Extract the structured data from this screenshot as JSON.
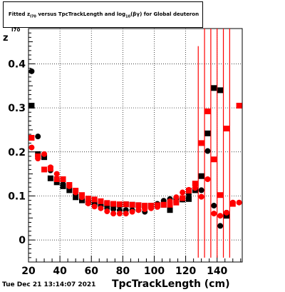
{
  "header": {
    "title_prefix": "Fitted  z",
    "title_sub1": "I70",
    "title_mid": "  versus TpcTrackLength and log",
    "title_sub2": "10",
    "title_suffix": "(βγ) for Global deuteron"
  },
  "footer": {
    "timestamp": "Tue Dec 21 13:14:07 2021"
  },
  "chart_data": {
    "type": "scatter",
    "title": "Fitted z_I70 versus TpcTrackLength and log10(βγ) for Global deuteron",
    "xlabel": "TpcTrackLength (cm)",
    "ylabel": "z",
    "ylabel_sub": "I70",
    "xlim": [
      20,
      156
    ],
    "ylim": [
      -0.05,
      0.48
    ],
    "x_ticks": [
      20,
      40,
      60,
      80,
      100,
      120,
      140
    ],
    "y_ticks": [
      0,
      0.1,
      0.2,
      0.3,
      0.4
    ],
    "x_tick_labels": [
      "20",
      "40",
      "60",
      "80",
      "100",
      "120",
      "140"
    ],
    "y_tick_labels": [
      "0",
      "0.1",
      "0.2",
      "0.3",
      "0.4"
    ],
    "grid": true,
    "legend": "none",
    "series": [
      {
        "marker": "circle",
        "color": "#000000",
        "points": [
          [
            22,
            0.383
          ],
          [
            26,
            0.235
          ],
          [
            30,
            0.192
          ],
          [
            34,
            0.158
          ],
          [
            38,
            0.137
          ],
          [
            42,
            0.127
          ],
          [
            46,
            0.115
          ],
          [
            50,
            0.103
          ],
          [
            54,
            0.093
          ],
          [
            58,
            0.086
          ],
          [
            62,
            0.082
          ],
          [
            66,
            0.077
          ],
          [
            70,
            0.072
          ],
          [
            74,
            0.07
          ],
          [
            78,
            0.068
          ],
          [
            82,
            0.068
          ],
          [
            86,
            0.068
          ],
          [
            90,
            0.068
          ],
          [
            94,
            0.064
          ],
          [
            98,
            0.076
          ],
          [
            102,
            0.082
          ],
          [
            106,
            0.089
          ],
          [
            110,
            0.093
          ],
          [
            114,
            0.094
          ],
          [
            118,
            0.092
          ],
          [
            122,
            0.103
          ],
          [
            126,
            0.116
          ],
          [
            130,
            0.113
          ],
          [
            134,
            0.202
          ],
          [
            138,
            0.078
          ],
          [
            142,
            0.032
          ],
          [
            146,
            0.062
          ]
        ]
      },
      {
        "marker": "square",
        "color": "#000000",
        "points": [
          [
            22,
            0.305
          ],
          [
            26,
            0.195
          ],
          [
            30,
            0.188
          ],
          [
            34,
            0.14
          ],
          [
            38,
            0.131
          ],
          [
            42,
            0.122
          ],
          [
            46,
            0.113
          ],
          [
            50,
            0.097
          ],
          [
            54,
            0.09
          ],
          [
            58,
            0.086
          ],
          [
            62,
            0.084
          ],
          [
            66,
            0.082
          ],
          [
            70,
            0.081
          ],
          [
            74,
            0.08
          ],
          [
            78,
            0.08
          ],
          [
            82,
            0.081
          ],
          [
            86,
            0.08
          ],
          [
            90,
            0.079
          ],
          [
            94,
            0.077
          ],
          [
            98,
            0.078
          ],
          [
            102,
            0.079
          ],
          [
            106,
            0.08
          ],
          [
            110,
            0.068
          ],
          [
            114,
            0.09
          ],
          [
            118,
            0.092
          ],
          [
            122,
            0.093
          ],
          [
            126,
            0.113
          ],
          [
            130,
            0.145
          ],
          [
            134,
            0.242
          ],
          [
            138,
            0.345
          ],
          [
            142,
            0.34
          ],
          [
            146,
            0.055
          ]
        ]
      },
      {
        "marker": "circle",
        "color": "#ff0000",
        "points": [
          [
            22,
            0.21
          ],
          [
            26,
            0.185
          ],
          [
            30,
            0.195
          ],
          [
            34,
            0.165
          ],
          [
            38,
            0.15
          ],
          [
            42,
            0.138
          ],
          [
            46,
            0.122
          ],
          [
            50,
            0.108
          ],
          [
            54,
            0.097
          ],
          [
            58,
            0.083
          ],
          [
            62,
            0.076
          ],
          [
            66,
            0.072
          ],
          [
            70,
            0.065
          ],
          [
            74,
            0.06
          ],
          [
            78,
            0.06
          ],
          [
            82,
            0.06
          ],
          [
            86,
            0.064
          ],
          [
            90,
            0.068
          ],
          [
            94,
            0.07
          ],
          [
            98,
            0.072
          ],
          [
            102,
            0.075
          ],
          [
            106,
            0.08
          ],
          [
            110,
            0.088
          ],
          [
            114,
            0.097
          ],
          [
            118,
            0.108
          ],
          [
            122,
            0.114
          ],
          [
            126,
            0.118
          ],
          [
            130,
            0.098
          ],
          [
            134,
            0.138
          ],
          [
            138,
            0.06
          ],
          [
            142,
            0.055
          ],
          [
            146,
            0.062
          ],
          [
            150,
            0.085
          ],
          [
            154,
            0.085
          ]
        ]
      },
      {
        "marker": "square",
        "color": "#ff0000",
        "points": [
          [
            22,
            0.232
          ],
          [
            26,
            0.19
          ],
          [
            30,
            0.16
          ],
          [
            34,
            0.162
          ],
          [
            38,
            0.138
          ],
          [
            42,
            0.138
          ],
          [
            46,
            0.125
          ],
          [
            50,
            0.112
          ],
          [
            54,
            0.102
          ],
          [
            58,
            0.094
          ],
          [
            62,
            0.092
          ],
          [
            66,
            0.088
          ],
          [
            70,
            0.084
          ],
          [
            74,
            0.082
          ],
          [
            78,
            0.081
          ],
          [
            82,
            0.081
          ],
          [
            86,
            0.08
          ],
          [
            90,
            0.079
          ],
          [
            94,
            0.078
          ],
          [
            98,
            0.078
          ],
          [
            102,
            0.079
          ],
          [
            106,
            0.08
          ],
          [
            110,
            0.08
          ],
          [
            114,
            0.085
          ],
          [
            118,
            0.095
          ],
          [
            122,
            0.112
          ],
          [
            126,
            0.128
          ],
          [
            130,
            0.22
          ],
          [
            134,
            0.292
          ],
          [
            138,
            0.183
          ],
          [
            142,
            0.102
          ],
          [
            146,
            0.253
          ],
          [
            150,
            0.082
          ],
          [
            154,
            0.305
          ]
        ]
      }
    ],
    "error_bars": {
      "color": "#ff0000",
      "bars": [
        [
          128,
          -0.04,
          0.44
        ],
        [
          132,
          -0.04,
          0.48
        ],
        [
          136,
          -0.04,
          0.48
        ],
        [
          140,
          -0.04,
          0.48
        ],
        [
          144,
          -0.04,
          0.48
        ],
        [
          148,
          -0.04,
          0.48
        ]
      ]
    }
  }
}
